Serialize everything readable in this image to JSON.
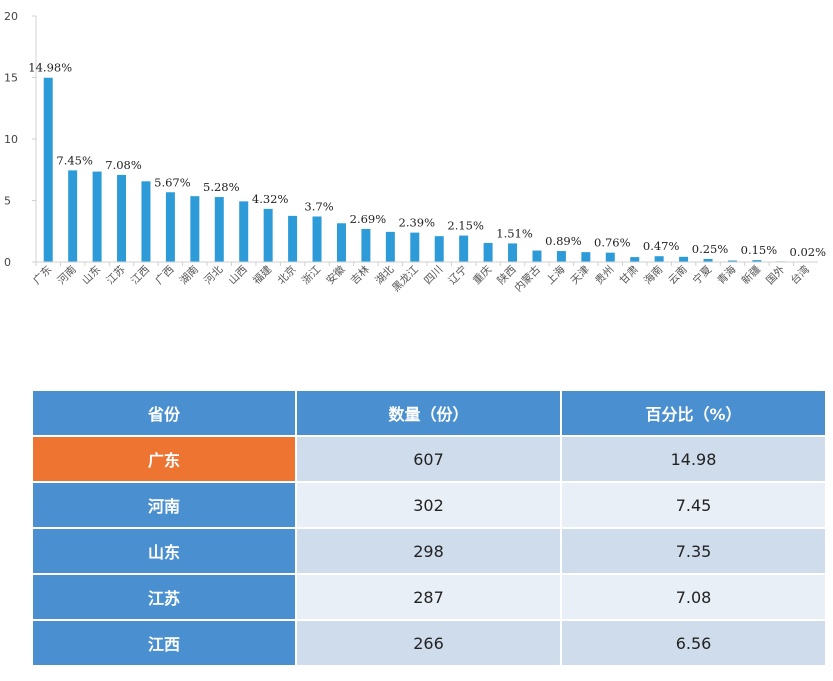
{
  "chart_data": {
    "type": "bar",
    "title": "",
    "xlabel": "",
    "ylabel": "",
    "ylim": [
      0,
      20
    ],
    "yticks": [
      0,
      5,
      10,
      15,
      20
    ],
    "grid": false,
    "bar_color": "#2e9bd9",
    "categories": [
      "广东",
      "河南",
      "山东",
      "江苏",
      "江西",
      "广西",
      "湖南",
      "河北",
      "山西",
      "福建",
      "北京",
      "浙江",
      "安徽",
      "吉林",
      "湖北",
      "黑龙江",
      "四川",
      "辽宁",
      "重庆",
      "陕西",
      "内蒙古",
      "上海",
      "天津",
      "贵州",
      "甘肃",
      "海南",
      "云南",
      "宁夏",
      "青海",
      "新疆",
      "国外",
      "台湾"
    ],
    "values": [
      14.98,
      7.45,
      7.35,
      7.08,
      6.56,
      5.67,
      5.35,
      5.28,
      4.93,
      4.32,
      3.75,
      3.7,
      3.15,
      2.69,
      2.45,
      2.39,
      2.1,
      2.15,
      1.55,
      1.51,
      0.93,
      0.89,
      0.8,
      0.76,
      0.4,
      0.47,
      0.42,
      0.25,
      0.12,
      0.15,
      0.05,
      0.02
    ],
    "data_labels": [
      {
        "index": 0,
        "text": "14.98%"
      },
      {
        "index": 1,
        "text": "7.45%"
      },
      {
        "index": 3,
        "text": "7.08%"
      },
      {
        "index": 5,
        "text": "5.67%"
      },
      {
        "index": 7,
        "text": "5.28%"
      },
      {
        "index": 9,
        "text": "4.32%"
      },
      {
        "index": 11,
        "text": "3.7%"
      },
      {
        "index": 13,
        "text": "2.69%"
      },
      {
        "index": 15,
        "text": "2.39%"
      },
      {
        "index": 17,
        "text": "2.15%"
      },
      {
        "index": 19,
        "text": "1.51%"
      },
      {
        "index": 21,
        "text": "0.89%"
      },
      {
        "index": 23,
        "text": "0.76%"
      },
      {
        "index": 25,
        "text": "0.47%"
      },
      {
        "index": 27,
        "text": "0.25%"
      },
      {
        "index": 29,
        "text": "0.15%"
      },
      {
        "index": 31,
        "text": "0.02%"
      }
    ]
  },
  "table": {
    "headers": [
      "省份",
      "数量（份）",
      "百分比（%）"
    ],
    "rows": [
      {
        "province": "广东",
        "count": "607",
        "percent": "14.98",
        "highlight": true
      },
      {
        "province": "河南",
        "count": "302",
        "percent": "7.45",
        "highlight": false
      },
      {
        "province": "山东",
        "count": "298",
        "percent": "7.35",
        "highlight": false
      },
      {
        "province": "江苏",
        "count": "287",
        "percent": "7.08",
        "highlight": false
      },
      {
        "province": "江西",
        "count": "266",
        "percent": "6.56",
        "highlight": false
      }
    ],
    "colors": {
      "header": "#4a8fcf",
      "highlight": "#ed7431",
      "row_odd": "#cfdcec",
      "row_even": "#e9eff7"
    }
  }
}
